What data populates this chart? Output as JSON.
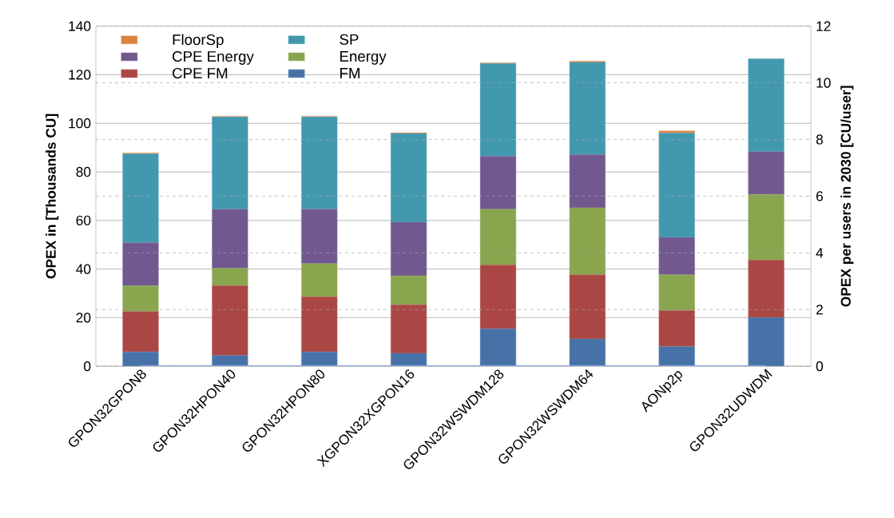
{
  "chart_data": {
    "type": "bar",
    "stacked": true,
    "categories": [
      "GPON32GPON8",
      "GPON32HPON40",
      "GPON32HPON80",
      "XGPON32XGPON16",
      "GPON32WSWDM128",
      "GPON32WSWDM64",
      "AONp2p",
      "GPON32UDWDM"
    ],
    "ylabel": "OPEX in [Thousands CU]",
    "y2label": "OPEX per users in 2030 [CU/user]",
    "ylim": [
      0,
      140
    ],
    "yticks": [
      0,
      20,
      40,
      60,
      80,
      100,
      120,
      140
    ],
    "y2lim": [
      0,
      12
    ],
    "y2ticks": [
      0,
      2,
      4,
      6,
      8,
      10,
      12
    ],
    "grid": true,
    "legend": "top left",
    "series": [
      {
        "name": "FM",
        "color": "#4672a8",
        "values": [
          5.9,
          4.4,
          5.9,
          5.3,
          15.4,
          11.2,
          8.1,
          20.0
        ]
      },
      {
        "name": "CPE FM",
        "color": "#aa4744",
        "values": [
          16.6,
          28.8,
          22.7,
          20.0,
          26.3,
          26.4,
          14.8,
          23.7
        ]
      },
      {
        "name": "Energy",
        "color": "#89a54e",
        "values": [
          10.6,
          7.1,
          13.6,
          11.9,
          22.9,
          27.6,
          14.7,
          27.0
        ]
      },
      {
        "name": "CPE Energy",
        "color": "#71588f",
        "values": [
          17.7,
          24.3,
          22.4,
          22.1,
          21.8,
          21.9,
          15.4,
          17.6
        ]
      },
      {
        "name": "SP",
        "color": "#4198af",
        "values": [
          36.6,
          38.0,
          38.0,
          36.5,
          38.2,
          38.0,
          43.0,
          38.3
        ]
      },
      {
        "name": "FloorSp",
        "color": "#db843d",
        "values": [
          0.4,
          0.3,
          0.3,
          0.3,
          0.3,
          0.5,
          0.9,
          null
        ]
      },
      {
        "type": "line",
        "axis": "y2",
        "color": "#8faadc",
        "values": [
          0,
          0,
          0,
          0,
          0,
          0,
          0,
          0
        ]
      }
    ]
  }
}
